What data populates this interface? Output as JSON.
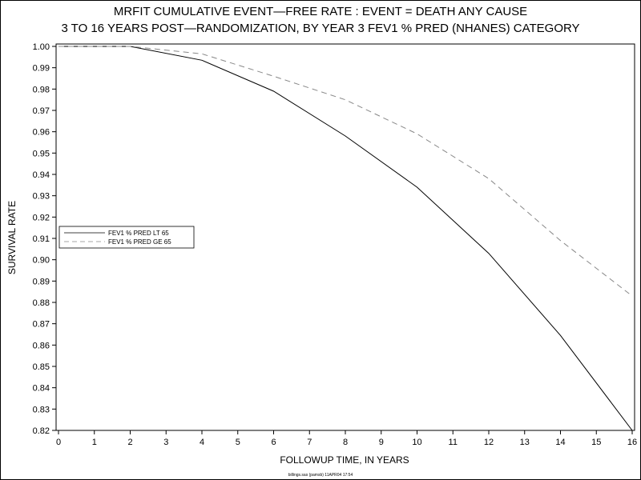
{
  "chart_data": {
    "type": "line",
    "title": "MRFIT CUMULATIVE EVENT—FREE RATE : EVENT =  DEATH ANY CAUSE",
    "subtitle": "3 TO 16 YEARS POST—RANDOMIZATION, BY YEAR 3 FEV1 % PRED (NHANES) CATEGORY",
    "xlabel": "FOLLOWUP TIME, IN YEARS",
    "ylabel": "SURVIVAL RATE",
    "xlim": [
      0,
      16
    ],
    "ylim": [
      0.82,
      1.0
    ],
    "x_ticks": [
      "0",
      "1",
      "2",
      "3",
      "4",
      "5",
      "6",
      "7",
      "8",
      "9",
      "10",
      "11",
      "12",
      "13",
      "14",
      "15",
      "16"
    ],
    "y_ticks": [
      "0.82",
      "0.83",
      "0.84",
      "0.85",
      "0.86",
      "0.87",
      "0.88",
      "0.89",
      "0.90",
      "0.91",
      "0.92",
      "0.93",
      "0.94",
      "0.95",
      "0.96",
      "0.97",
      "0.98",
      "0.99",
      "1.00"
    ],
    "grid": false,
    "legend_position": "left-middle",
    "series": [
      {
        "name": "FEV1 % PRED LT 65",
        "style": "solid",
        "color": "#000000",
        "x": [
          0,
          2,
          4,
          6,
          8,
          10,
          12,
          14,
          16
        ],
        "y": [
          1.0,
          1.0,
          0.9935,
          0.979,
          0.958,
          0.934,
          0.903,
          0.8645,
          0.82
        ]
      },
      {
        "name": "FEV1 % PRED GE 65",
        "style": "dashed",
        "color": "#888888",
        "x": [
          0,
          2,
          4,
          6,
          8,
          10,
          12,
          14,
          16
        ],
        "y": [
          1.0,
          1.0,
          0.9965,
          0.986,
          0.975,
          0.959,
          0.938,
          0.909,
          0.883
        ]
      }
    ]
  },
  "footnote": "billings.sas (pamsb) 11APR04 17:54"
}
